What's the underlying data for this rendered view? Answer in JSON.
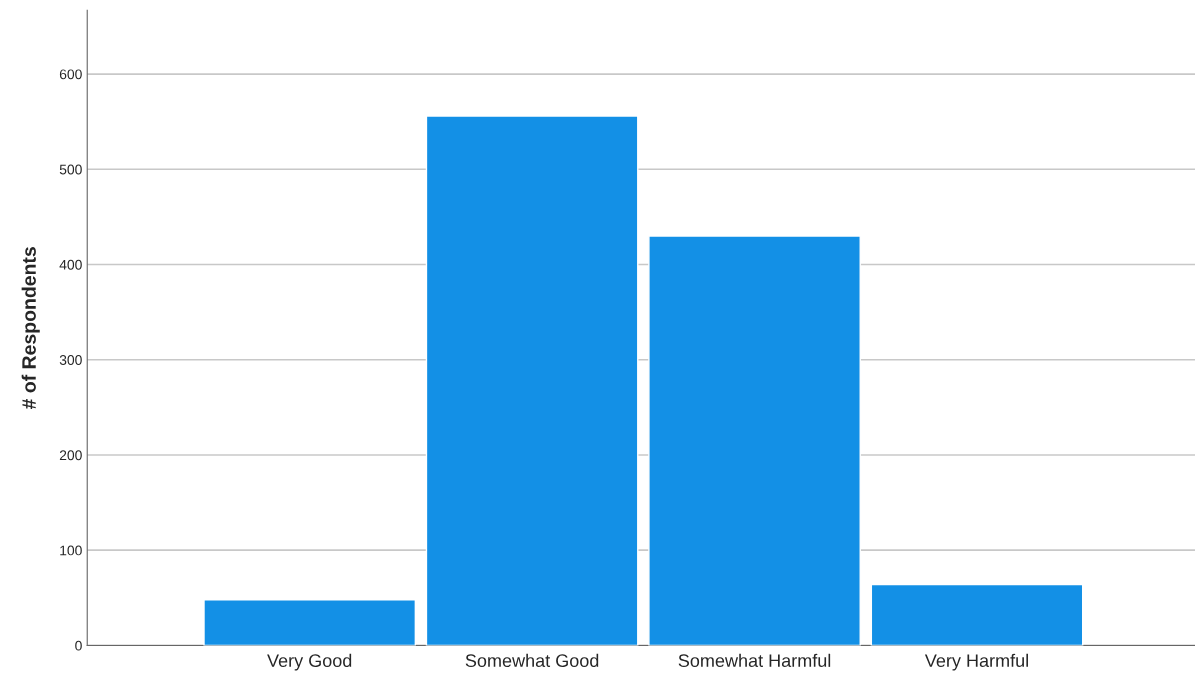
{
  "chart_data": {
    "type": "bar",
    "ylabel": "# of Respondents",
    "categories": [
      "Very Good",
      "Somewhat Good",
      "Somewhat Harmful",
      "Very Harmful"
    ],
    "values": [
      48,
      556,
      430,
      64
    ],
    "color": "#1390e6",
    "ylim": [
      0,
      667
    ],
    "yticks": [
      0,
      100,
      200,
      300,
      400,
      500,
      600
    ],
    "grid": "y",
    "legend": false
  }
}
